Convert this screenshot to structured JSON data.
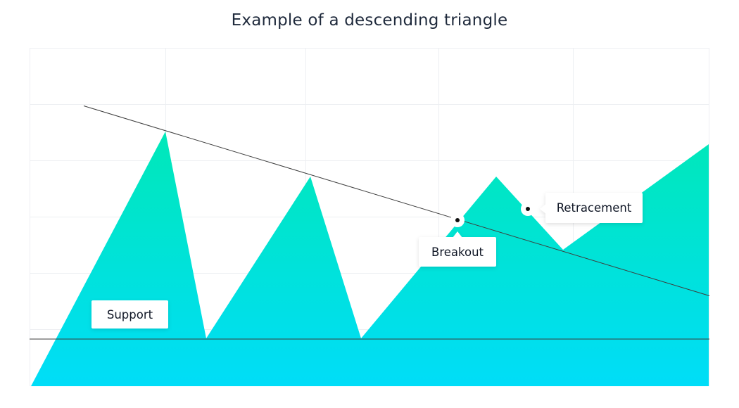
{
  "title": "Example of a descending triangle",
  "labels": {
    "support": "Support",
    "breakout": "Breakout",
    "retracement": "Retracement"
  },
  "colors": {
    "gradient_top": "#00E8B8",
    "gradient_bottom": "#00DDF8",
    "grid": "#EDEFF2",
    "line": "#3D3D3D",
    "marker": "#111111"
  }
}
